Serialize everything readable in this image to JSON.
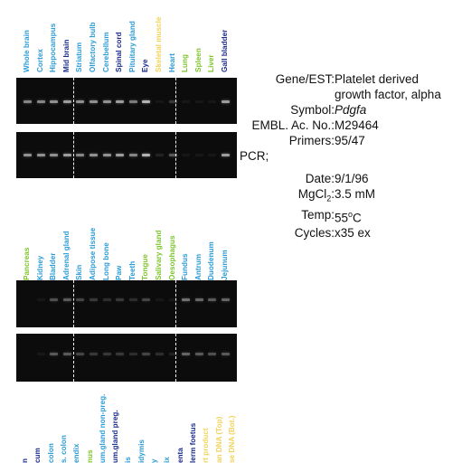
{
  "panel_top": {
    "lanes": [
      {
        "label": "Whole brain",
        "color": "#2a9bd6",
        "b1": 0.55,
        "b2": 0.6
      },
      {
        "label": "Cortex",
        "color": "#2a9bd6",
        "b1": 0.55,
        "b2": 0.6
      },
      {
        "label": "Hippocampus",
        "color": "#2a9bd6",
        "b1": 0.6,
        "b2": 0.6
      },
      {
        "label": "Mid brain",
        "color": "#1a2a8a",
        "b1": 0.65,
        "b2": 0.65
      },
      {
        "label": "Striatum",
        "color": "#2a9bd6",
        "b1": 0.6,
        "b2": 0.55
      },
      {
        "label": "Olfactory bulb",
        "color": "#2a9bd6",
        "b1": 0.6,
        "b2": 0.6
      },
      {
        "label": "Cerebellum",
        "color": "#2a9bd6",
        "b1": 0.6,
        "b2": 0.6
      },
      {
        "label": "Spinal cord",
        "color": "#1a2a8a",
        "b1": 0.65,
        "b2": 0.65
      },
      {
        "label": "Pituitary gland",
        "color": "#2a9bd6",
        "b1": 0.5,
        "b2": 0.55
      },
      {
        "label": "Eye",
        "color": "#1a2a8a",
        "b1": 0.75,
        "b2": 0.75
      },
      {
        "label": "Skeletal muscle",
        "color": "#f2d35a",
        "b1": 0.05,
        "b2": 0.1
      },
      {
        "label": "Heart",
        "color": "#2a9bd6",
        "b1": 0.2,
        "b2": 0.35
      },
      {
        "label": "Lung",
        "color": "#7cc42a",
        "b1": 0.05,
        "b2": 0.05
      },
      {
        "label": "Spleen",
        "color": "#7cc42a",
        "b1": 0.05,
        "b2": 0.05
      },
      {
        "label": "Liver",
        "color": "#7cc42a",
        "b1": 0.05,
        "b2": 0.05
      },
      {
        "label": "Gall bladder",
        "color": "#1a2a8a",
        "b1": 0.65,
        "b2": 0.65
      }
    ]
  },
  "panel_bottom": {
    "lanes": [
      {
        "label": "Pancreas",
        "color": "#7cc42a",
        "b1": 0.0,
        "b2": 0.0
      },
      {
        "label": "Kidney",
        "color": "#2a9bd6",
        "b1": 0.05,
        "b2": 0.05
      },
      {
        "label": "Bladder",
        "color": "#2a9bd6",
        "b1": 0.3,
        "b2": 0.35
      },
      {
        "label": "Adrenal gland",
        "color": "#2a9bd6",
        "b1": 0.35,
        "b2": 0.35
      },
      {
        "label": "Skin",
        "color": "#2a9bd6",
        "b1": 0.25,
        "b2": 0.25
      },
      {
        "label": "Adipose tissue",
        "color": "#2a9bd6",
        "b1": 0.2,
        "b2": 0.2
      },
      {
        "label": "Long bone",
        "color": "#2a9bd6",
        "b1": 0.15,
        "b2": 0.2
      },
      {
        "label": "Paw",
        "color": "#2a9bd6",
        "b1": 0.2,
        "b2": 0.2
      },
      {
        "label": "Teeth",
        "color": "#2a9bd6",
        "b1": 0.15,
        "b2": 0.15
      },
      {
        "label": "Tongue",
        "color": "#7cc42a",
        "b1": 0.25,
        "b2": 0.25
      },
      {
        "label": "Salivary gland",
        "color": "#7cc42a",
        "b1": 0.05,
        "b2": 0.15
      },
      {
        "label": "Oesophagus",
        "color": "#7cc42a",
        "b1": 0.05,
        "b2": 0.1
      },
      {
        "label": "Fundus",
        "color": "#2a9bd6",
        "b1": 0.45,
        "b2": 0.4
      },
      {
        "label": "Antrum",
        "color": "#2a9bd6",
        "b1": 0.4,
        "b2": 0.35
      },
      {
        "label": "Duodenum",
        "color": "#2a9bd6",
        "b1": 0.35,
        "b2": 0.3
      },
      {
        "label": "Jejunum",
        "color": "#2a9bd6",
        "b1": 0.4,
        "b2": 0.35
      }
    ]
  },
  "panel_third": {
    "lanes": [
      {
        "label": "n",
        "color": "#1a2a8a"
      },
      {
        "label": "cum",
        "color": "#1a2a8a"
      },
      {
        "label": "colon",
        "color": "#2a9bd6"
      },
      {
        "label": "s. colon",
        "color": "#2a9bd6"
      },
      {
        "label": "endix",
        "color": "#2a9bd6"
      },
      {
        "label": "nus",
        "color": "#7cc42a"
      },
      {
        "label": "um.gland non-preg.",
        "color": "#2a9bd6"
      },
      {
        "label": "um.gland preg.",
        "color": "#1a2a8a"
      },
      {
        "label": "is",
        "color": "#2a9bd6"
      },
      {
        "label": "idymis",
        "color": "#2a9bd6"
      },
      {
        "label": "y",
        "color": "#2a9bd6"
      },
      {
        "label": "ix",
        "color": "#2a9bd6"
      },
      {
        "label": "enta",
        "color": "#1a2a8a"
      },
      {
        "label": "lerm foetus",
        "color": "#1a2a8a"
      },
      {
        "label": "rt product",
        "color": "#f2d35a"
      },
      {
        "label": "an DNA (Top)",
        "color": "#f2d35a"
      },
      {
        "label": "se DNA (Bot.)",
        "color": "#f2d35a"
      }
    ]
  },
  "info": {
    "gene_label": "Gene/EST:",
    "gene_value": "Platelet derived\ngrowth factor, alpha",
    "symbol_label": "Symbol:",
    "symbol_value": "Pdgfa",
    "embl_label": "EMBL. Ac. No.:",
    "embl_value": "M29464",
    "primers_label": "Primers:",
    "primers_value": "95/47",
    "pcr_label": "PCR;",
    "date_label": "Date:",
    "date_value": "9/1/96",
    "mgcl_label": "MgCl",
    "mgcl_sub": "2",
    "mgcl_colon": ":",
    "mgcl_value": "3.5 mM",
    "temp_label": "Temp:",
    "temp_value": "55",
    "temp_sup": "o",
    "temp_unit": "C",
    "cycles_label": "Cycles:",
    "cycles_value": "x35 ex"
  }
}
